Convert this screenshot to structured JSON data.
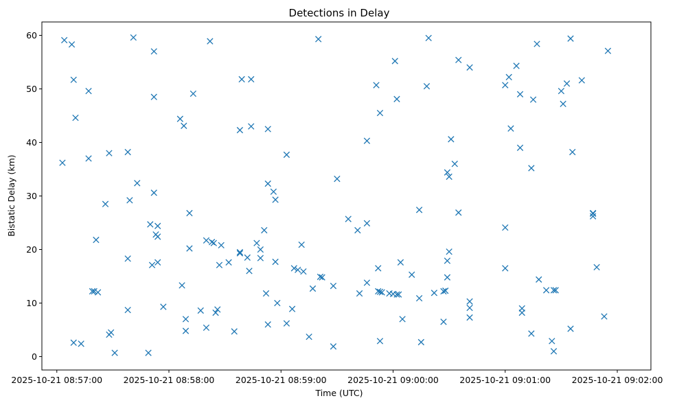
{
  "chart_data": {
    "type": "scatter",
    "title": "Detections in Delay",
    "xlabel": "Time (UTC)",
    "ylabel": "Bistatic Delay (km)",
    "marker": "x",
    "color": "#1f77b4",
    "grid": false,
    "xlim": [
      "2025-10-21 08:56:52",
      "2025-10-21 09:02:18"
    ],
    "ylim": [
      -2.5,
      62.5
    ],
    "x_ticks": [
      "2025-10-21 08:57:00",
      "2025-10-21 08:58:00",
      "2025-10-21 08:59:00",
      "2025-10-21 09:00:00",
      "2025-10-21 09:01:00",
      "2025-10-21 09:02:00"
    ],
    "y_ticks": [
      "0",
      "10",
      "20",
      "30",
      "40",
      "50",
      "60"
    ],
    "series": [
      {
        "points": [
          [
            "2025-10-21 08:57:03",
            36.2
          ],
          [
            "2025-10-21 08:57:04",
            59.1
          ],
          [
            "2025-10-21 08:57:08",
            58.3
          ],
          [
            "2025-10-21 08:57:09",
            51.7
          ],
          [
            "2025-10-21 08:57:10",
            44.6
          ],
          [
            "2025-10-21 08:57:09",
            2.6
          ],
          [
            "2025-10-21 08:57:13",
            2.4
          ],
          [
            "2025-10-21 08:57:17",
            49.6
          ],
          [
            "2025-10-21 08:57:17",
            37.0
          ],
          [
            "2025-10-21 08:57:19",
            12.2
          ],
          [
            "2025-10-21 08:57:20",
            12.2
          ],
          [
            "2025-10-21 08:57:21",
            21.8
          ],
          [
            "2025-10-21 08:57:22",
            12.0
          ],
          [
            "2025-10-21 08:57:26",
            28.5
          ],
          [
            "2025-10-21 08:57:28",
            38.0
          ],
          [
            "2025-10-21 08:57:28",
            4.1
          ],
          [
            "2025-10-21 08:57:29",
            4.5
          ],
          [
            "2025-10-21 08:57:31",
            0.7
          ],
          [
            "2025-10-21 08:57:38",
            38.2
          ],
          [
            "2025-10-21 08:57:38",
            18.3
          ],
          [
            "2025-10-21 08:57:38",
            8.7
          ],
          [
            "2025-10-21 08:57:39",
            29.2
          ],
          [
            "2025-10-21 08:57:41",
            59.6
          ],
          [
            "2025-10-21 08:57:43",
            32.4
          ],
          [
            "2025-10-21 08:57:49",
            0.7
          ],
          [
            "2025-10-21 08:57:50",
            24.7
          ],
          [
            "2025-10-21 08:57:51",
            17.1
          ],
          [
            "2025-10-21 08:57:52",
            57.0
          ],
          [
            "2025-10-21 08:57:52",
            48.5
          ],
          [
            "2025-10-21 08:57:52",
            30.6
          ],
          [
            "2025-10-21 08:57:53",
            22.8
          ],
          [
            "2025-10-21 08:57:54",
            22.4
          ],
          [
            "2025-10-21 08:57:54",
            24.4
          ],
          [
            "2025-10-21 08:57:54",
            17.6
          ],
          [
            "2025-10-21 08:57:57",
            9.3
          ],
          [
            "2025-10-21 08:58:06",
            44.4
          ],
          [
            "2025-10-21 08:58:07",
            13.3
          ],
          [
            "2025-10-21 08:58:08",
            43.1
          ],
          [
            "2025-10-21 08:58:09",
            7.0
          ],
          [
            "2025-10-21 08:58:09",
            4.8
          ],
          [
            "2025-10-21 08:58:11",
            26.8
          ],
          [
            "2025-10-21 08:58:11",
            20.2
          ],
          [
            "2025-10-21 08:58:13",
            49.1
          ],
          [
            "2025-10-21 08:58:17",
            8.6
          ],
          [
            "2025-10-21 08:58:20",
            5.4
          ],
          [
            "2025-10-21 08:58:20",
            21.7
          ],
          [
            "2025-10-21 08:58:22",
            58.9
          ],
          [
            "2025-10-21 08:58:23",
            21.4
          ],
          [
            "2025-10-21 08:58:24",
            21.2
          ],
          [
            "2025-10-21 08:58:25",
            8.2
          ],
          [
            "2025-10-21 08:58:26",
            8.8
          ],
          [
            "2025-10-21 08:58:27",
            17.1
          ],
          [
            "2025-10-21 08:58:28",
            20.8
          ],
          [
            "2025-10-21 08:58:32",
            17.6
          ],
          [
            "2025-10-21 08:58:35",
            4.7
          ],
          [
            "2025-10-21 08:58:38",
            42.3
          ],
          [
            "2025-10-21 08:58:38",
            19.3
          ],
          [
            "2025-10-21 08:58:38",
            19.5
          ],
          [
            "2025-10-21 08:58:39",
            51.8
          ],
          [
            "2025-10-21 08:58:42",
            18.5
          ],
          [
            "2025-10-21 08:58:43",
            16.0
          ],
          [
            "2025-10-21 08:58:44",
            51.8
          ],
          [
            "2025-10-21 08:58:44",
            43.0
          ],
          [
            "2025-10-21 08:58:47",
            21.2
          ],
          [
            "2025-10-21 08:58:49",
            20.0
          ],
          [
            "2025-10-21 08:58:49",
            18.4
          ],
          [
            "2025-10-21 08:58:51",
            23.6
          ],
          [
            "2025-10-21 08:58:52",
            11.8
          ],
          [
            "2025-10-21 08:58:53",
            42.5
          ],
          [
            "2025-10-21 08:58:53",
            32.3
          ],
          [
            "2025-10-21 08:58:53",
            6.0
          ],
          [
            "2025-10-21 08:58:56",
            30.8
          ],
          [
            "2025-10-21 08:58:57",
            29.3
          ],
          [
            "2025-10-21 08:58:57",
            17.7
          ],
          [
            "2025-10-21 08:58:58",
            10.0
          ],
          [
            "2025-10-21 08:59:03",
            37.7
          ],
          [
            "2025-10-21 08:59:03",
            6.2
          ],
          [
            "2025-10-21 08:59:06",
            8.9
          ],
          [
            "2025-10-21 08:59:07",
            16.5
          ],
          [
            "2025-10-21 08:59:09",
            16.2
          ],
          [
            "2025-10-21 08:59:11",
            20.9
          ],
          [
            "2025-10-21 08:59:12",
            15.9
          ],
          [
            "2025-10-21 08:59:15",
            3.7
          ],
          [
            "2025-10-21 08:59:17",
            12.7
          ],
          [
            "2025-10-21 08:59:20",
            59.3
          ],
          [
            "2025-10-21 08:59:21",
            14.9
          ],
          [
            "2025-10-21 08:59:22",
            14.8
          ],
          [
            "2025-10-21 08:59:28",
            1.9
          ],
          [
            "2025-10-21 08:59:28",
            13.2
          ],
          [
            "2025-10-21 08:59:30",
            33.2
          ],
          [
            "2025-10-21 08:59:36",
            25.7
          ],
          [
            "2025-10-21 08:59:41",
            23.6
          ],
          [
            "2025-10-21 08:59:42",
            11.8
          ],
          [
            "2025-10-21 08:59:46",
            40.3
          ],
          [
            "2025-10-21 08:59:46",
            24.9
          ],
          [
            "2025-10-21 08:59:46",
            13.8
          ],
          [
            "2025-10-21 08:59:51",
            50.7
          ],
          [
            "2025-10-21 08:59:52",
            12.2
          ],
          [
            "2025-10-21 08:59:52",
            16.5
          ],
          [
            "2025-10-21 08:59:53",
            12.1
          ],
          [
            "2025-10-21 08:59:53",
            45.5
          ],
          [
            "2025-10-21 08:59:53",
            2.9
          ],
          [
            "2025-10-21 08:59:54",
            12.0
          ],
          [
            "2025-10-21 08:59:58",
            11.8
          ],
          [
            "2025-10-21 09:00:00",
            11.7
          ],
          [
            "2025-10-21 09:00:01",
            55.2
          ],
          [
            "2025-10-21 09:00:02",
            11.6
          ],
          [
            "2025-10-21 09:00:02",
            48.1
          ],
          [
            "2025-10-21 09:00:03",
            11.6
          ],
          [
            "2025-10-21 09:00:04",
            17.6
          ],
          [
            "2025-10-21 09:00:05",
            7.0
          ],
          [
            "2025-10-21 09:00:10",
            15.3
          ],
          [
            "2025-10-21 09:00:14",
            27.4
          ],
          [
            "2025-10-21 09:00:14",
            10.9
          ],
          [
            "2025-10-21 09:00:15",
            2.7
          ],
          [
            "2025-10-21 09:00:18",
            50.5
          ],
          [
            "2025-10-21 09:00:19",
            59.5
          ],
          [
            "2025-10-21 09:00:22",
            11.9
          ],
          [
            "2025-10-21 09:00:27",
            12.2
          ],
          [
            "2025-10-21 09:00:27",
            6.5
          ],
          [
            "2025-10-21 09:00:28",
            12.3
          ],
          [
            "2025-10-21 09:00:29",
            17.9
          ],
          [
            "2025-10-21 09:00:29",
            14.8
          ],
          [
            "2025-10-21 09:00:29",
            34.4
          ],
          [
            "2025-10-21 09:00:30",
            33.6
          ],
          [
            "2025-10-21 09:00:30",
            19.6
          ],
          [
            "2025-10-21 09:00:31",
            40.6
          ],
          [
            "2025-10-21 09:00:33",
            36.0
          ],
          [
            "2025-10-21 09:00:35",
            55.4
          ],
          [
            "2025-10-21 09:00:35",
            26.9
          ],
          [
            "2025-10-21 09:00:41",
            54.0
          ],
          [
            "2025-10-21 09:00:41",
            10.3
          ],
          [
            "2025-10-21 09:00:41",
            9.1
          ],
          [
            "2025-10-21 09:00:41",
            7.3
          ],
          [
            "2025-10-21 09:01:00",
            50.7
          ],
          [
            "2025-10-21 09:01:00",
            24.1
          ],
          [
            "2025-10-21 09:01:00",
            16.5
          ],
          [
            "2025-10-21 09:01:02",
            52.2
          ],
          [
            "2025-10-21 09:01:03",
            42.6
          ],
          [
            "2025-10-21 09:01:06",
            54.3
          ],
          [
            "2025-10-21 09:01:08",
            49.0
          ],
          [
            "2025-10-21 09:01:08",
            39.0
          ],
          [
            "2025-10-21 09:01:09",
            9.0
          ],
          [
            "2025-10-21 09:01:09",
            8.2
          ],
          [
            "2025-10-21 09:01:14",
            35.2
          ],
          [
            "2025-10-21 09:01:14",
            4.3
          ],
          [
            "2025-10-21 09:01:15",
            48.0
          ],
          [
            "2025-10-21 09:01:17",
            58.4
          ],
          [
            "2025-10-21 09:01:18",
            14.4
          ],
          [
            "2025-10-21 09:01:22",
            12.4
          ],
          [
            "2025-10-21 09:01:25",
            2.9
          ],
          [
            "2025-10-21 09:01:26",
            1.0
          ],
          [
            "2025-10-21 09:01:26",
            12.4
          ],
          [
            "2025-10-21 09:01:27",
            12.4
          ],
          [
            "2025-10-21 09:01:30",
            49.6
          ],
          [
            "2025-10-21 09:01:31",
            47.2
          ],
          [
            "2025-10-21 09:01:33",
            51.0
          ],
          [
            "2025-10-21 09:01:35",
            5.2
          ],
          [
            "2025-10-21 09:01:35",
            59.4
          ],
          [
            "2025-10-21 09:01:36",
            38.2
          ],
          [
            "2025-10-21 09:01:41",
            51.6
          ],
          [
            "2025-10-21 09:01:47",
            26.8
          ],
          [
            "2025-10-21 09:01:47",
            26.2
          ],
          [
            "2025-10-21 09:01:47",
            26.7
          ],
          [
            "2025-10-21 09:01:49",
            16.7
          ],
          [
            "2025-10-21 09:01:53",
            7.5
          ],
          [
            "2025-10-21 09:01:55",
            57.1
          ]
        ]
      }
    ]
  }
}
